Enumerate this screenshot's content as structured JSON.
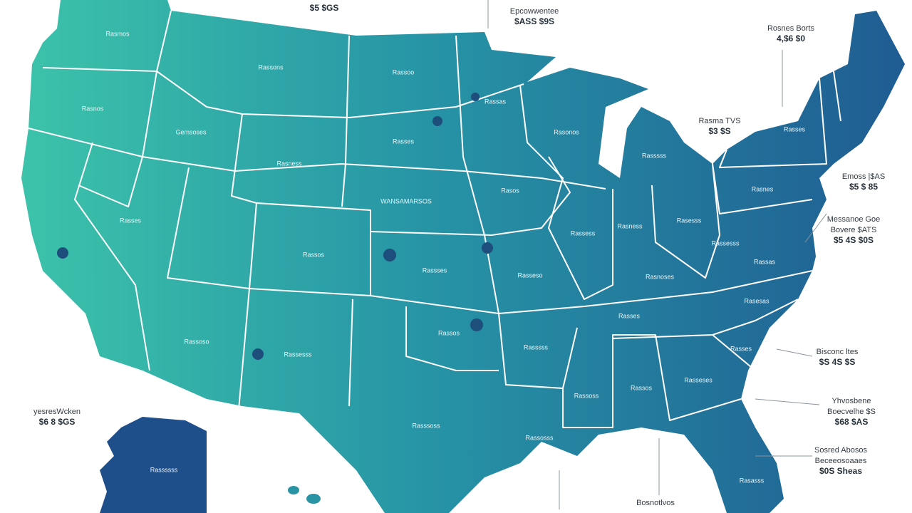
{
  "annotations": [
    {
      "lines": [
        "$5 $GS"
      ]
    },
    {
      "lines": [
        "Epcowwentee",
        "$ASS $9S"
      ]
    },
    {
      "lines": [
        "Rosnes Borts",
        "4,$6 $0"
      ]
    },
    {
      "lines": [
        "Rasma TVS",
        "$3 $S"
      ]
    },
    {
      "lines": [
        "Emoss |$AS",
        "$5 $ 85"
      ]
    },
    {
      "lines": [
        "Messanoe Goe",
        "Bovere $ATS",
        "$5 4S $0S"
      ]
    },
    {
      "lines": [
        "Bisconc ltes",
        "$S 4S $S"
      ]
    },
    {
      "lines": [
        "Yhvosbene",
        "Boecvelhe $S",
        "$68 $AS"
      ]
    },
    {
      "lines": [
        "Sosred Abosos",
        "Beceeosoaaes",
        "$0S Sheas"
      ]
    },
    {
      "lines": [
        "Bosnotlvos"
      ]
    },
    {
      "lines": [
        "yesresWcken",
        "$6 8 $GS"
      ]
    }
  ],
  "state_labels": [
    "Rasmos",
    "Rassons",
    "Rassoo",
    "Rasnos",
    "Rassas",
    "Gemsoses",
    "Rasses",
    "Rasonos",
    "Rasness",
    "Rasssss",
    "Rasses",
    "Rasos",
    "Rasses",
    "Rasnes",
    "WANSAMARSOS",
    "Rassos",
    "Rassses",
    "Rassess",
    "Rasness",
    "Rasesss",
    "Rasseso",
    "Rassesss",
    "Rassas",
    "Rasnoses",
    "Rasesas",
    "Rasses",
    "Rassos",
    "Rassoso",
    "Rassesss",
    "Rasssss",
    "Rasses",
    "Rassoss",
    "Rassos",
    "Rasseses",
    "Rasssoss",
    "Rassosss",
    "Rasasss",
    "Rassssss"
  ]
}
